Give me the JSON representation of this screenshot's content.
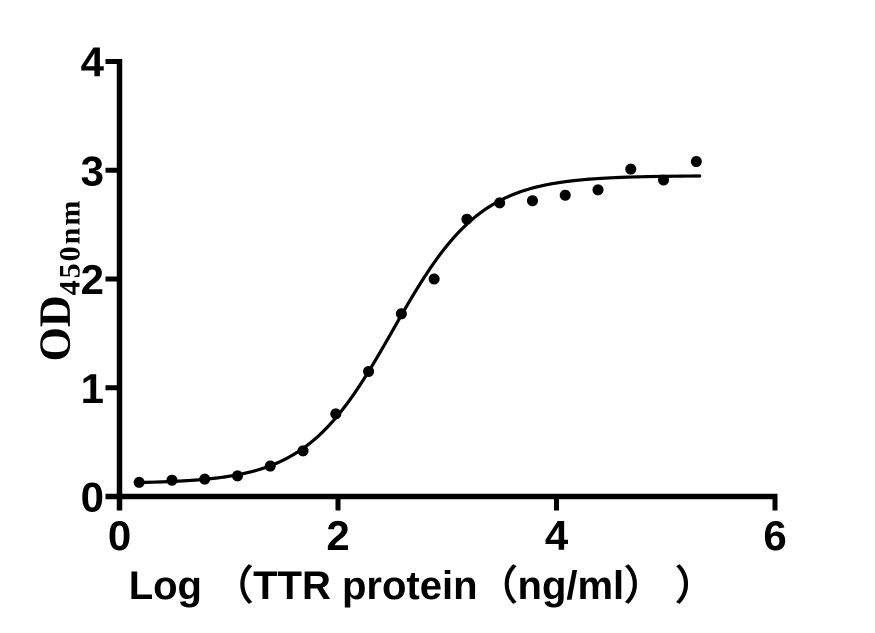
{
  "background_color": "#ffffff",
  "chart_data": {
    "type": "scatter",
    "title": "",
    "xlabel": "Log （TTR protein（ng/ml） ）",
    "ylabel_base": "OD",
    "ylabel_subscript": "450nm",
    "xlim": [
      0,
      6
    ],
    "ylim": [
      0,
      4
    ],
    "x_ticks": [
      0,
      2,
      4,
      6
    ],
    "y_ticks": [
      0,
      1,
      2,
      3,
      4
    ],
    "grid": false,
    "legend": "none",
    "axis_color": "#000000",
    "marker_color": "#000000",
    "curve_color": "#000000",
    "points": {
      "x": [
        0.18,
        0.48,
        0.78,
        1.08,
        1.38,
        1.68,
        1.98,
        2.28,
        2.58,
        2.88,
        3.18,
        3.48,
        3.78,
        4.08,
        4.38,
        4.68,
        4.98,
        5.28
      ],
      "y": [
        0.13,
        0.15,
        0.16,
        0.19,
        0.28,
        0.42,
        0.76,
        1.15,
        1.68,
        2.0,
        2.55,
        2.7,
        2.72,
        2.77,
        2.82,
        3.01,
        2.91,
        3.08
      ]
    },
    "fit_curve": {
      "model": "4PL-sigmoid",
      "bottom": 0.12,
      "top": 2.95,
      "logEC50": 2.505,
      "hill": 1.08,
      "x_start": 0.15,
      "x_end": 5.31
    }
  }
}
